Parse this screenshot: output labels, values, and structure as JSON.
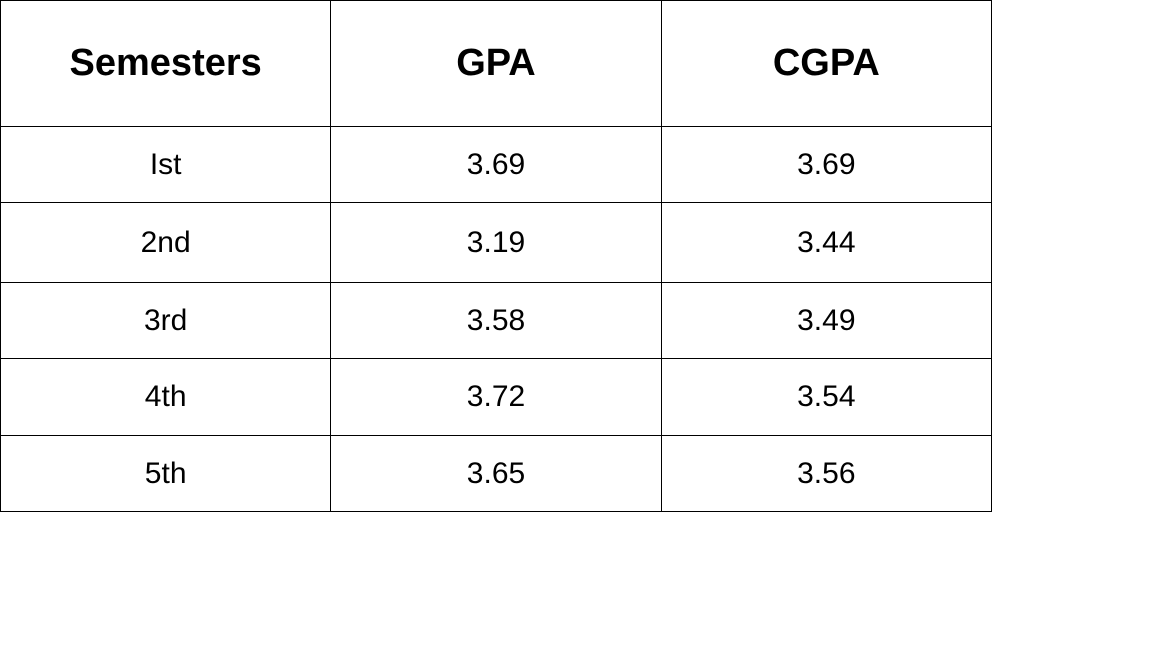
{
  "table": {
    "headers": [
      "Semesters",
      "GPA",
      "CGPA"
    ],
    "rows": [
      [
        "Ist",
        "3.69",
        "3.69"
      ],
      [
        "2nd",
        "3.19",
        "3.44"
      ],
      [
        "3rd",
        "3.58",
        "3.49"
      ],
      [
        "4th",
        "3.72",
        "3.54"
      ],
      [
        "5th",
        "3.65",
        "3.56"
      ]
    ]
  }
}
